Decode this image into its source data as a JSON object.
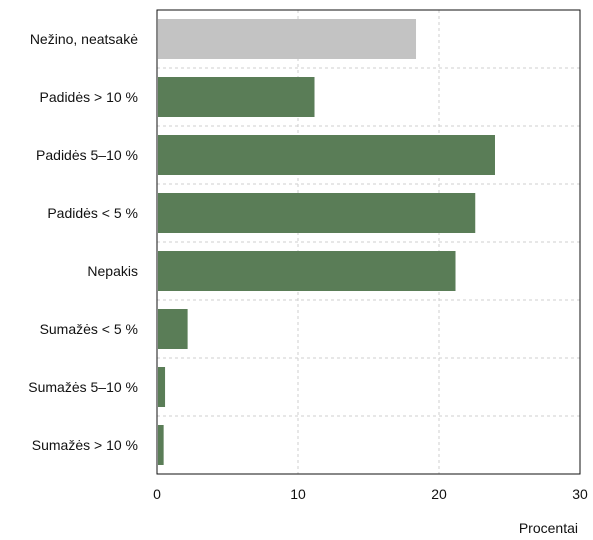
{
  "chart_data": {
    "type": "bar",
    "orientation": "horizontal",
    "categories": [
      "Nežino, neatsakė",
      "Padidės > 10 %",
      "Padidės 5–10 %",
      "Padidės < 5 %",
      "Nepakis",
      "Sumažės < 5 %",
      "Sumažės 5–10 %",
      "Sumažės > 10 %"
    ],
    "values": [
      18.3,
      11.1,
      23.9,
      22.5,
      21.1,
      2.1,
      0.5,
      0.4
    ],
    "bar_colors": [
      "#c3c3c3",
      "#5a7d57",
      "#5a7d57",
      "#5a7d57",
      "#5a7d57",
      "#5a7d57",
      "#5a7d57",
      "#5a7d57"
    ],
    "xlabel": "Procentai",
    "xlim": [
      0,
      30
    ],
    "xticks": [
      0,
      10,
      20,
      30
    ],
    "grid": true,
    "legend": "none"
  }
}
